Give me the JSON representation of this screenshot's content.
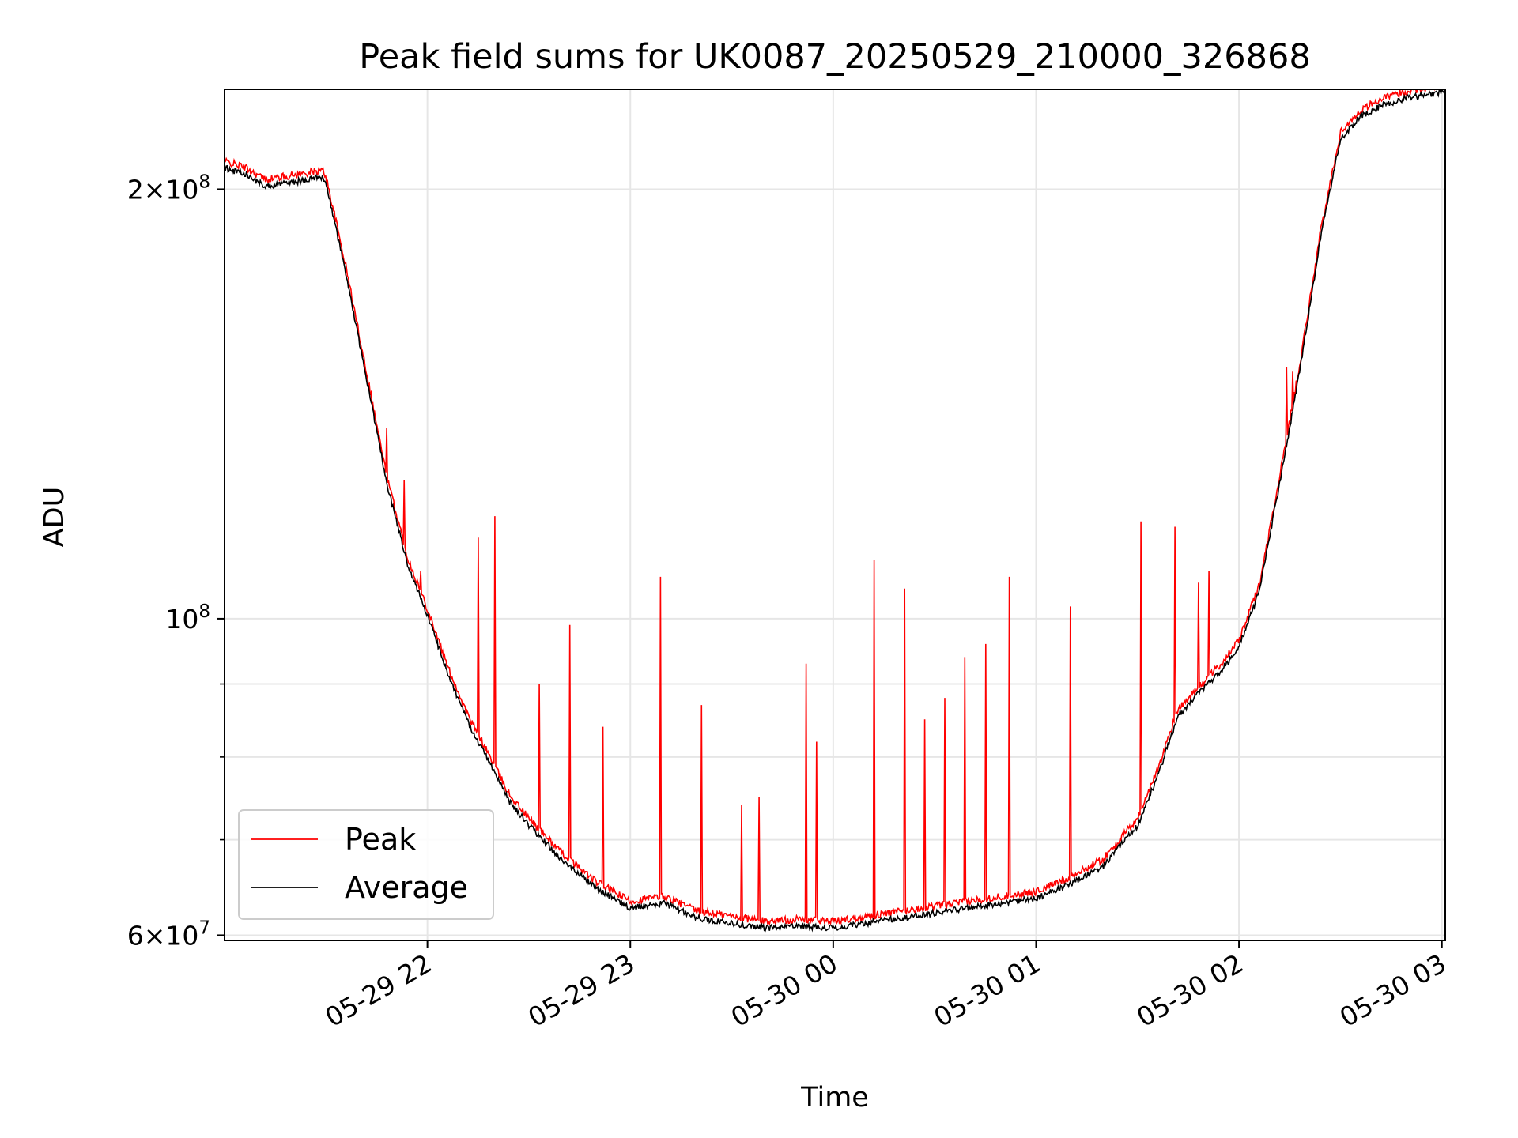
{
  "chart_data": {
    "type": "line",
    "title": "Peak field sums for UK0087_20250529_210000_326868",
    "xlabel": "Time",
    "ylabel": "ADU",
    "yscale": "log",
    "grid": true,
    "legend_position": "lower-left",
    "x_unit": "time",
    "xlim": [
      "2025-05-29 21:00",
      "2025-05-30 03:01"
    ],
    "ylim": [
      59500000,
      235000000
    ],
    "x_ticks": [
      {
        "value": "2025-05-29 22:00",
        "label": "05-29 22"
      },
      {
        "value": "2025-05-29 23:00",
        "label": "05-29 23"
      },
      {
        "value": "2025-05-30 00:00",
        "label": "05-30 00"
      },
      {
        "value": "2025-05-30 01:00",
        "label": "05-30 01"
      },
      {
        "value": "2025-05-30 02:00",
        "label": "05-30 02"
      },
      {
        "value": "2025-05-30 03:00",
        "label": "05-30 03"
      }
    ],
    "y_major_ticks": [
      {
        "value": 60000000,
        "mantissa": "6",
        "base": "10",
        "exp": "7"
      },
      {
        "value": 100000000,
        "mantissa": "",
        "base": "10",
        "exp": "8"
      },
      {
        "value": 200000000,
        "mantissa": "2",
        "base": "10",
        "exp": "8"
      }
    ],
    "y_minor_ticks": [
      70000000,
      80000000,
      90000000
    ],
    "series": [
      {
        "name": "Average",
        "color": "#000000",
        "x": [
          "2025-05-29 21:00",
          "2025-05-29 21:06",
          "2025-05-29 21:12",
          "2025-05-29 21:18",
          "2025-05-29 21:24",
          "2025-05-29 21:29",
          "2025-05-29 21:30",
          "2025-05-29 21:36",
          "2025-05-29 21:42",
          "2025-05-29 21:48",
          "2025-05-29 21:54",
          "2025-05-29 22:00",
          "2025-05-29 22:06",
          "2025-05-29 22:12",
          "2025-05-29 22:18",
          "2025-05-29 22:24",
          "2025-05-29 22:30",
          "2025-05-29 22:40",
          "2025-05-29 22:50",
          "2025-05-29 23:00",
          "2025-05-29 23:10",
          "2025-05-29 23:20",
          "2025-05-29 23:30",
          "2025-05-29 23:40",
          "2025-05-29 23:50",
          "2025-05-30 00:00",
          "2025-05-30 00:10",
          "2025-05-30 00:20",
          "2025-05-30 00:30",
          "2025-05-30 00:40",
          "2025-05-30 00:50",
          "2025-05-30 01:00",
          "2025-05-30 01:10",
          "2025-05-30 01:20",
          "2025-05-30 01:30",
          "2025-05-30 01:36",
          "2025-05-30 01:42",
          "2025-05-30 01:48",
          "2025-05-30 01:54",
          "2025-05-30 02:00",
          "2025-05-30 02:06",
          "2025-05-30 02:12",
          "2025-05-30 02:18",
          "2025-05-30 02:24",
          "2025-05-30 02:30",
          "2025-05-30 02:36",
          "2025-05-30 02:42",
          "2025-05-30 02:50",
          "2025-05-30 03:00"
        ],
        "values": [
          208000000,
          206000000,
          202000000,
          203000000,
          204000000,
          205000000,
          203000000,
          175000000,
          148000000,
          125000000,
          110000000,
          101000000,
          92000000,
          85000000,
          80000000,
          75000000,
          72000000,
          68000000,
          65000000,
          63000000,
          63500000,
          62000000,
          61500000,
          61000000,
          61200000,
          61000000,
          61500000,
          62000000,
          62500000,
          63000000,
          63500000,
          64000000,
          65500000,
          67500000,
          72000000,
          78000000,
          86000000,
          89000000,
          92000000,
          96000000,
          105000000,
          125000000,
          150000000,
          185000000,
          218000000,
          226000000,
          230000000,
          233000000,
          235000000
        ]
      },
      {
        "name": "Peak",
        "color": "#ff0000",
        "x": [
          "2025-05-29 21:45",
          "2025-05-29 21:48",
          "2025-05-29 21:53",
          "2025-05-29 21:58",
          "2025-05-29 22:15",
          "2025-05-29 22:20",
          "2025-05-29 22:33",
          "2025-05-29 22:42",
          "2025-05-29 22:52",
          "2025-05-29 23:09",
          "2025-05-29 23:21",
          "2025-05-29 23:33",
          "2025-05-29 23:38",
          "2025-05-29 23:52",
          "2025-05-29 23:55",
          "2025-05-30 00:12",
          "2025-05-30 00:21",
          "2025-05-30 00:27",
          "2025-05-30 00:33",
          "2025-05-30 00:39",
          "2025-05-30 00:45",
          "2025-05-30 00:52",
          "2025-05-30 01:10",
          "2025-05-30 01:31",
          "2025-05-30 01:41",
          "2025-05-30 01:48",
          "2025-05-30 01:51",
          "2025-05-30 02:14",
          "2025-05-30 02:16"
        ],
        "values": [
          136000000,
          136000000,
          125000000,
          108000000,
          114000000,
          118000000,
          90000000,
          99000000,
          84000000,
          107000000,
          87000000,
          74000000,
          75000000,
          93000000,
          82000000,
          110000000,
          105000000,
          85000000,
          88000000,
          94000000,
          96000000,
          107000000,
          102000000,
          117000000,
          116000000,
          106000000,
          108000000,
          150000000,
          149000000
        ]
      }
    ]
  }
}
